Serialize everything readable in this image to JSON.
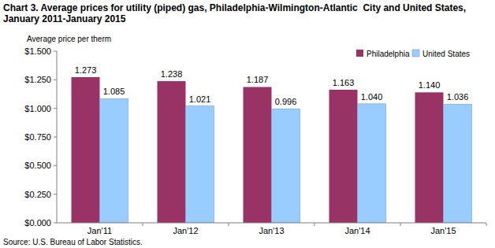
{
  "chart_data": {
    "type": "bar",
    "title": "Chart 3. Average prices for utility (piped) gas, Philadelphia-Wilmington-Atlantic  City and United States, January 2011-January 2015",
    "y_label": "Average price per therm",
    "source": "Source: U.S. Bureau of Labor Statistics.",
    "categories": [
      "Jan'11",
      "Jan'12",
      "Jan'13",
      "Jan'14",
      "Jan'15"
    ],
    "series": [
      {
        "name": "Philadelphia",
        "color": "#993366",
        "values": [
          1.273,
          1.238,
          1.187,
          1.163,
          1.14
        ],
        "value_labels": [
          "1.273",
          "1.238",
          "1.187",
          "1.163",
          "1.140"
        ]
      },
      {
        "name": "United States",
        "color": "#99ccff",
        "values": [
          1.085,
          1.021,
          0.996,
          1.04,
          1.036
        ],
        "value_labels": [
          "1.085",
          "1.021",
          "0.996",
          "1.040",
          "1.036"
        ]
      }
    ],
    "ylim": [
      0,
      1.5
    ],
    "yticks": [
      {
        "value": 0,
        "label": "$0.000"
      },
      {
        "value": 0.25,
        "label": "$0.250"
      },
      {
        "value": 0.5,
        "label": "$0.500"
      },
      {
        "value": 0.75,
        "label": "$0.750"
      },
      {
        "value": 1,
        "label": "$1.000"
      },
      {
        "value": 1.25,
        "label": "$1.250"
      },
      {
        "value": 1.5,
        "label": "$1.500"
      }
    ],
    "grid": false,
    "legend": "top-right",
    "data_labels": true
  }
}
